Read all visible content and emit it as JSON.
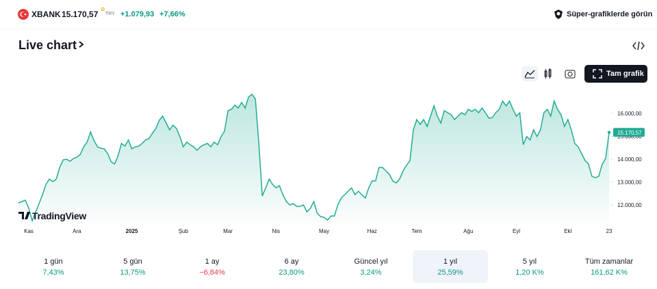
{
  "header": {
    "symbol": "XBANK",
    "price": "15.170,57",
    "delay": "D",
    "currency": "TRY",
    "change": "+1.079,93",
    "change_percent": "+7,66%",
    "link": "Süper-grafiklerde görün"
  },
  "title": "Live chart",
  "button": "Tam grafik",
  "logo": "TradingView",
  "chart_data": {
    "type": "area",
    "color": "#22ab94",
    "values": [
      12090,
      12150,
      12210,
      11850,
      11310,
      11700,
      12060,
      12450,
      12900,
      13130,
      13020,
      13130,
      13640,
      13970,
      14000,
      13910,
      14030,
      14090,
      14210,
      14540,
      14750,
      15190,
      14810,
      14540,
      14480,
      14450,
      14240,
      13880,
      13790,
      14150,
      14690,
      14570,
      14840,
      14450,
      14540,
      14570,
      14690,
      14840,
      14900,
      15130,
      15340,
      15700,
      15880,
      15580,
      15280,
      15490,
      15340,
      14990,
      14540,
      14750,
      14630,
      14540,
      14390,
      14540,
      14630,
      14690,
      14540,
      14750,
      14630,
      14990,
      15220,
      16120,
      16180,
      16360,
      16240,
      16480,
      16240,
      16720,
      16840,
      16630,
      14690,
      12390,
      12750,
      13130,
      12900,
      12750,
      12840,
      12450,
      12150,
      12000,
      12060,
      11940,
      11940,
      12000,
      11700,
      11850,
      12150,
      11640,
      11490,
      11460,
      11340,
      11520,
      11520,
      12000,
      12300,
      12450,
      12600,
      12750,
      12450,
      12600,
      12450,
      12300,
      12750,
      13050,
      13050,
      13640,
      13640,
      13490,
      13340,
      13050,
      12960,
      13130,
      13490,
      13730,
      13940,
      15280,
      15730,
      15520,
      15730,
      15430,
      15880,
      16330,
      15880,
      15580,
      16120,
      16030,
      15940,
      15730,
      15880,
      16030,
      15940,
      16180,
      16090,
      16180,
      16030,
      16240,
      16030,
      15790,
      15820,
      16030,
      16180,
      16540,
      16330,
      16540,
      16180,
      15880,
      16030,
      14630,
      14990,
      14840,
      15280,
      14990,
      15280,
      16030,
      16180,
      15880,
      16540,
      16180,
      15940,
      15430,
      15730,
      15280,
      14690,
      14540,
      14240,
      13940,
      13790,
      13250,
      13190,
      13250,
      13790,
      14030,
      15170.57
    ],
    "last_label": "15.170,57",
    "xlim": [
      0,
      172
    ],
    "xticks": [
      {
        "value": 3,
        "label": "Kas"
      },
      {
        "value": 17,
        "label": "Ara"
      },
      {
        "value": 33,
        "label": "2025"
      },
      {
        "value": 48,
        "label": "Şub"
      },
      {
        "value": 61,
        "label": "Mar"
      },
      {
        "value": 75,
        "label": "Nis"
      },
      {
        "value": 89,
        "label": "May"
      },
      {
        "value": 103,
        "label": "Haz"
      },
      {
        "value": 116,
        "label": "Tem"
      },
      {
        "value": 131,
        "label": "Ağu"
      },
      {
        "value": 145,
        "label": "Eyl"
      },
      {
        "value": 160,
        "label": "Ekl"
      },
      {
        "value": 172,
        "label": "23"
      }
    ],
    "ylim": [
      11200,
      17000
    ],
    "yticks": [
      {
        "value": 12000,
        "label": "12.000,00"
      },
      {
        "value": 13000,
        "label": "13.000,00"
      },
      {
        "value": 14000,
        "label": "14.000,00"
      },
      {
        "value": 15000,
        "label": "15.000,00"
      },
      {
        "value": 16000,
        "label": "16.000,00"
      }
    ]
  },
  "periods": [
    {
      "label": "1 gün",
      "change": "7,43%",
      "color": "#089981"
    },
    {
      "label": "5 gün",
      "change": "13,75%",
      "color": "#089981"
    },
    {
      "label": "1 ay",
      "change": "−6,84%",
      "color": "#f23645"
    },
    {
      "label": "6 ay",
      "change": "23,80%",
      "color": "#089981"
    },
    {
      "label": "Güncel yıl",
      "change": "3,24%",
      "color": "#089981"
    },
    {
      "label": "1 yıl",
      "change": "25,59%",
      "color": "#089981",
      "selected": true
    },
    {
      "label": "5 yıl",
      "change": "1,20 K%",
      "color": "#089981"
    },
    {
      "label": "Tüm zamanlar",
      "change": "161,62 K%",
      "color": "#089981"
    }
  ]
}
